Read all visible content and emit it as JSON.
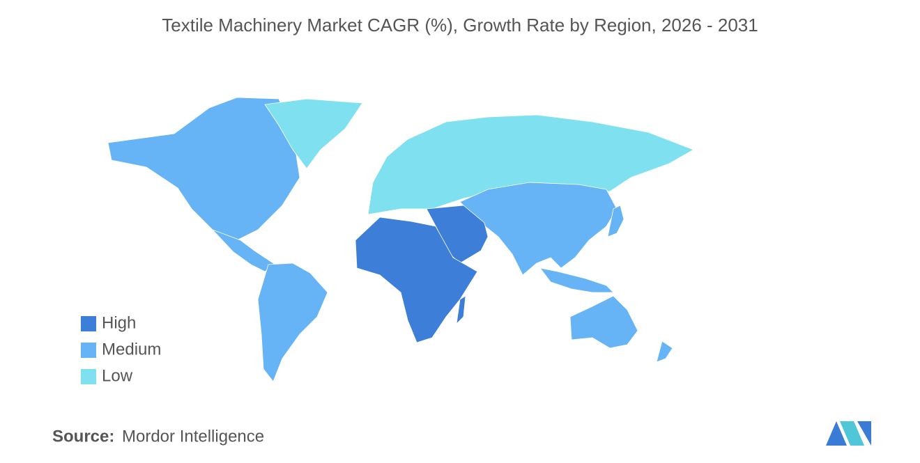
{
  "header": {
    "title": "Textile Machinery Market CAGR (%), Growth Rate by Region, 2026 - 2031"
  },
  "legend": {
    "items": [
      {
        "label": "High",
        "color": "#3d7fd8"
      },
      {
        "label": "Medium",
        "color": "#66b4f5"
      },
      {
        "label": "Low",
        "color": "#7fe0ef"
      }
    ]
  },
  "source": {
    "label": "Source:",
    "text": "Mordor Intelligence"
  }
}
